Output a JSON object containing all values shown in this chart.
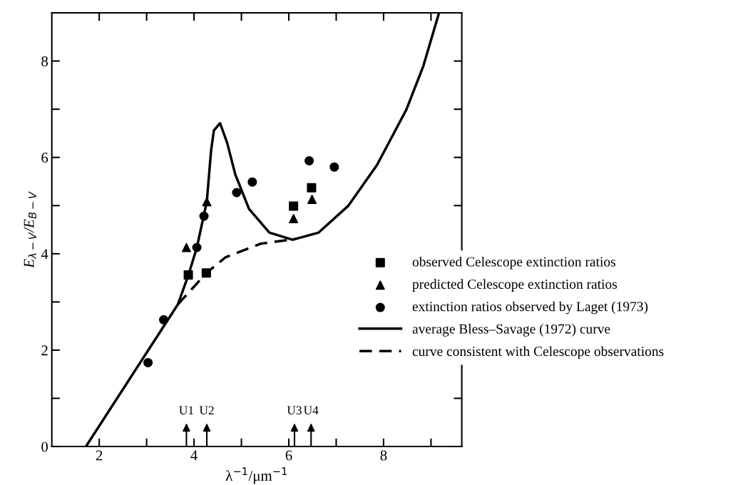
{
  "chart_data": {
    "type": "scatter",
    "xlabel": "λ$^{−1}$/μm$^{−1}$",
    "ylabel": "E$_{λ−V}$/E$_{B−V}$",
    "xlim": [
      1,
      9.65
    ],
    "ylim": [
      0,
      9
    ],
    "xticks": [
      2,
      {
        "value": 3,
        "label": null
      },
      4,
      {
        "value": 5,
        "label": null
      },
      6,
      {
        "value": 7,
        "label": null
      },
      8,
      {
        "value": 9,
        "label": null
      }
    ],
    "yticks": [
      0,
      {
        "value": 1,
        "label": null
      },
      2,
      {
        "value": 3,
        "label": null
      },
      4,
      {
        "value": 5,
        "label": null
      },
      6,
      {
        "value": 7,
        "label": null
      },
      8
    ],
    "legend": "right",
    "grid": false,
    "series": [
      {
        "name": "observed Celescope extinction ratios",
        "marker": "square",
        "color": "#000000",
        "x": [
          3.88,
          4.26,
          6.1,
          6.48
        ],
        "values": [
          3.56,
          3.6,
          4.99,
          5.37
        ]
      },
      {
        "name": "predicted Celescope extinction ratios",
        "marker": "triangle",
        "color": "#000000",
        "x": [
          3.84,
          4.27,
          6.1,
          6.49
        ],
        "values": [
          4.13,
          5.08,
          4.73,
          5.13
        ]
      },
      {
        "name": "extinction ratios observed by Laget (1973)",
        "marker": "circle",
        "color": "#000000",
        "x": [
          3.03,
          3.36,
          4.06,
          4.21,
          4.9,
          5.23,
          6.43,
          6.96
        ],
        "values": [
          1.74,
          2.63,
          4.13,
          4.78,
          5.27,
          5.49,
          5.93,
          5.8
        ]
      },
      {
        "name": "average Bless–Savage (1972) curve",
        "type": "line",
        "line_style": "solid",
        "color": "#000000",
        "x": [
          1.72,
          3.66,
          3.88,
          4.06,
          4.27,
          4.36,
          4.42,
          4.55,
          4.7,
          4.87,
          5.16,
          5.59,
          6.08,
          6.63,
          7.25,
          7.86,
          8.48,
          8.84,
          9.17
        ],
        "values": [
          0,
          2.95,
          3.55,
          4.13,
          5.08,
          6.14,
          6.56,
          6.71,
          6.3,
          5.65,
          4.93,
          4.44,
          4.29,
          4.44,
          4.99,
          5.84,
          6.99,
          7.9,
          9.0
        ]
      },
      {
        "name": "curve consistent with Celescope observations",
        "type": "line",
        "line_style": "dashed",
        "color": "#000000",
        "x": [
          3.66,
          3.93,
          4.26,
          4.67,
          5.41,
          6.02,
          6.15
        ],
        "values": [
          2.95,
          3.24,
          3.6,
          3.93,
          4.21,
          4.29,
          4.31
        ]
      }
    ],
    "ref_lines": [
      {
        "axis": "x",
        "value": 3.84,
        "label": "U1"
      },
      {
        "axis": "x",
        "value": 4.27,
        "label": "U2"
      },
      {
        "axis": "x",
        "value": 6.12,
        "label": "U3"
      },
      {
        "axis": "x",
        "value": 6.47,
        "label": "U4"
      }
    ]
  }
}
